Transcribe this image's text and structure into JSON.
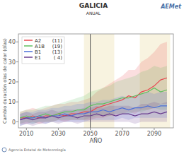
{
  "chart_data": {
    "type": "line",
    "title": "GALICIA",
    "subtitle": "ANUAL",
    "x_label": "AÑO",
    "y_label": "Cambio duración olas de calor (días)",
    "logo_text": "AEMet",
    "footer": "Agencia Estatal de Meteorología",
    "x": [
      2006,
      2010,
      2014,
      2018,
      2022,
      2026,
      2030,
      2034,
      2038,
      2042,
      2046,
      2050,
      2054,
      2058,
      2062,
      2066,
      2070,
      2074,
      2078,
      2082,
      2086,
      2090,
      2094,
      2098
    ],
    "series": [
      {
        "name": "A2",
        "models_label": "(11)",
        "color": "#e8474f",
        "values": [
          2,
          2,
          3,
          2,
          3,
          3,
          4,
          3,
          4,
          4,
          5,
          5,
          7,
          8,
          9,
          10,
          11,
          13,
          12,
          15,
          16,
          18,
          21,
          22
        ],
        "lower": [
          -1,
          -1,
          0,
          -1,
          0,
          0,
          1,
          0,
          1,
          1,
          1,
          1,
          2,
          2,
          3,
          3,
          4,
          5,
          4,
          6,
          6,
          7,
          9,
          9
        ],
        "upper": [
          5,
          6,
          7,
          6,
          7,
          8,
          9,
          9,
          10,
          10,
          11,
          12,
          15,
          17,
          19,
          21,
          23,
          26,
          26,
          30,
          32,
          35,
          39,
          40
        ]
      },
      {
        "name": "A1B",
        "models_label": "(19)",
        "color": "#5fbf5f",
        "values": [
          2,
          3,
          2,
          3,
          4,
          3,
          4,
          5,
          5,
          6,
          6,
          8,
          9,
          9,
          10,
          11,
          12,
          12,
          13,
          14,
          15,
          17,
          15,
          16
        ],
        "lower": [
          -1,
          0,
          -1,
          0,
          0,
          0,
          1,
          1,
          1,
          1,
          1,
          2,
          3,
          3,
          3,
          4,
          4,
          4,
          5,
          5,
          6,
          7,
          6,
          6
        ],
        "upper": [
          5,
          6,
          6,
          7,
          8,
          8,
          9,
          10,
          11,
          12,
          13,
          15,
          16,
          17,
          18,
          20,
          21,
          22,
          23,
          25,
          26,
          28,
          27,
          28
        ]
      },
      {
        "name": "B1",
        "models_label": "(13)",
        "color": "#4a6fd8",
        "values": [
          1,
          2,
          2,
          3,
          2,
          3,
          3,
          4,
          3,
          4,
          4,
          5,
          5,
          6,
          5,
          6,
          7,
          6,
          7,
          7,
          8,
          7,
          8,
          8
        ],
        "lower": [
          -2,
          -1,
          -1,
          0,
          -1,
          0,
          0,
          0,
          0,
          0,
          0,
          1,
          1,
          1,
          1,
          1,
          2,
          1,
          2,
          2,
          2,
          2,
          2,
          2
        ],
        "upper": [
          4,
          5,
          5,
          6,
          6,
          7,
          7,
          8,
          8,
          9,
          9,
          10,
          10,
          11,
          11,
          12,
          13,
          12,
          13,
          14,
          15,
          14,
          15,
          15
        ]
      },
      {
        "name": "E1",
        "models_label": "( 4)",
        "color": "#6a3d8f",
        "values": [
          1,
          2,
          1,
          2,
          2,
          3,
          2,
          3,
          3,
          2,
          3,
          3,
          4,
          3,
          4,
          3,
          4,
          4,
          3,
          4,
          4,
          5,
          4,
          5
        ],
        "lower": [
          -2,
          -1,
          -2,
          -1,
          -1,
          0,
          -1,
          0,
          0,
          -1,
          0,
          0,
          0,
          0,
          0,
          0,
          0,
          0,
          -1,
          0,
          0,
          0,
          0,
          0
        ],
        "upper": [
          4,
          5,
          4,
          5,
          5,
          6,
          5,
          6,
          6,
          6,
          7,
          7,
          8,
          7,
          8,
          8,
          8,
          8,
          7,
          9,
          9,
          10,
          9,
          10
        ]
      }
    ],
    "shaded_periods": [
      [
        2046,
        2065
      ],
      [
        2081,
        2100
      ]
    ],
    "reference_line": 2050,
    "xlim": [
      2005,
      2102
    ],
    "xticks": [
      2010,
      2030,
      2050,
      2070,
      2090
    ],
    "ylim": [
      -3,
      44
    ],
    "yticks": [
      0,
      10,
      20,
      30,
      40
    ],
    "grid": false,
    "legend": "top-left"
  }
}
